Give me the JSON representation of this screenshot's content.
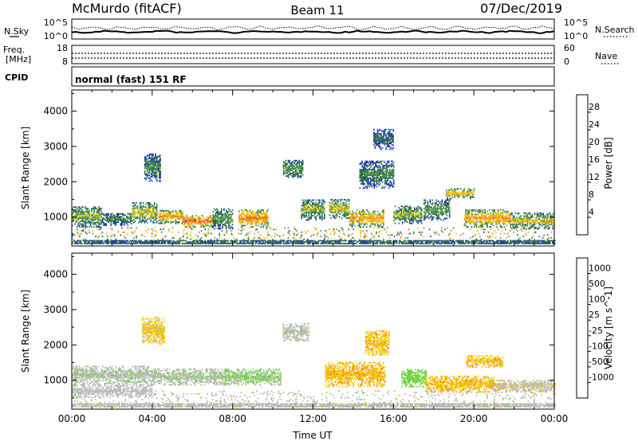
{
  "header": {
    "station": "McMurdo (fitACF)",
    "beam": "Beam 11",
    "date": "07/Dec/2019"
  },
  "panels": {
    "noise": {
      "left_label": "N.Sky",
      "right_label": "N.Search",
      "left_ticks": [
        "10^5",
        "10^0"
      ],
      "right_ticks": [
        "10^5",
        "10^0"
      ]
    },
    "freq": {
      "left_label_1": "Freq.",
      "left_label_2": "[MHz]",
      "right_label": "Nave",
      "left_ticks": [
        "18",
        "8"
      ],
      "right_ticks": [
        "60",
        "0"
      ]
    },
    "cpid": {
      "label": "CPID",
      "value": "normal (fast) 151 RF"
    }
  },
  "colors": {
    "power_scale": [
      "#0000ff",
      "#1a3fa0",
      "#2b6e3a",
      "#4f9a54",
      "#f5c400",
      "#f39a1a",
      "#f06a0c",
      "#e81818"
    ],
    "velocity_scale": [
      "#e81818",
      "#f06a0c",
      "#f08a1a",
      "#f5c400",
      "#b9b9b9",
      "#6fd23a",
      "#2e8a3a",
      "#2a4fa8",
      "#0000ff"
    ],
    "ground_scatter": "#b4b4b4"
  },
  "chart_data": [
    {
      "type": "heatmap",
      "name": "Power",
      "xlabel": "",
      "ylabel": "Slant Range [km]",
      "ylim": [
        180,
        4600
      ],
      "yticks": [
        "1000",
        "2000",
        "3000",
        "4000"
      ],
      "colorbar": {
        "label": "Power [dB]",
        "ticks": [
          "4",
          "8",
          "12",
          "16",
          "20",
          "24",
          "28"
        ],
        "range": [
          0,
          30
        ]
      },
      "bands": [
        {
          "t": [
            0.0,
            1.5
          ],
          "r": [
            700,
            1300
          ],
          "level": 14
        },
        {
          "t": [
            1.5,
            3.0
          ],
          "r": [
            750,
            1100
          ],
          "level": 10
        },
        {
          "t": [
            3.0,
            4.2
          ],
          "r": [
            820,
            1400
          ],
          "level": 16
        },
        {
          "t": [
            3.6,
            4.4
          ],
          "r": [
            2000,
            2800
          ],
          "level": 10
        },
        {
          "t": [
            4.3,
            5.5
          ],
          "r": [
            800,
            1200
          ],
          "level": 20
        },
        {
          "t": [
            5.5,
            7.0
          ],
          "r": [
            700,
            1050
          ],
          "level": 24
        },
        {
          "t": [
            7.0,
            8.0
          ],
          "r": [
            650,
            1250
          ],
          "level": 12
        },
        {
          "t": [
            8.3,
            9.8
          ],
          "r": [
            700,
            1200
          ],
          "level": 22
        },
        {
          "t": [
            10.5,
            11.5
          ],
          "r": [
            2100,
            2600
          ],
          "level": 12
        },
        {
          "t": [
            11.4,
            12.6
          ],
          "r": [
            900,
            1500
          ],
          "level": 14
        },
        {
          "t": [
            12.8,
            13.8
          ],
          "r": [
            950,
            1500
          ],
          "level": 16
        },
        {
          "t": [
            13.8,
            15.5
          ],
          "r": [
            700,
            1200
          ],
          "level": 20
        },
        {
          "t": [
            14.3,
            16.0
          ],
          "r": [
            1800,
            2600
          ],
          "level": 10
        },
        {
          "t": [
            15.0,
            16.0
          ],
          "r": [
            2900,
            3500
          ],
          "level": 8
        },
        {
          "t": [
            16.0,
            17.4
          ],
          "r": [
            800,
            1300
          ],
          "level": 14
        },
        {
          "t": [
            17.5,
            18.8
          ],
          "r": [
            900,
            1500
          ],
          "level": 12
        },
        {
          "t": [
            18.6,
            20.0
          ],
          "r": [
            1500,
            1800
          ],
          "level": 18
        },
        {
          "t": [
            19.5,
            21.8
          ],
          "r": [
            700,
            1200
          ],
          "level": 20
        },
        {
          "t": [
            21.8,
            24.0
          ],
          "r": [
            650,
            1100
          ],
          "level": 16
        }
      ]
    },
    {
      "type": "heatmap",
      "name": "Velocity",
      "xlabel": "Time UT",
      "ylabel": "Slant Range [km]",
      "ylim": [
        180,
        4600
      ],
      "xlim": [
        0,
        24
      ],
      "xticks": [
        "00:00",
        "04:00",
        "08:00",
        "12:00",
        "16:00",
        "20:00",
        "00:00"
      ],
      "yticks": [
        "1000",
        "2000",
        "3000",
        "4000"
      ],
      "colorbar": {
        "label": "Velocity [m s^-1]",
        "ticks": [
          "1000",
          "500",
          "100",
          "25",
          "-25",
          "-100",
          "-500",
          "-1000"
        ],
        "range": [
          -1000,
          1000
        ]
      },
      "bands": [
        {
          "t": [
            0.0,
            4.0
          ],
          "r": [
            850,
            1400
          ],
          "level": 80
        },
        {
          "t": [
            0.0,
            4.0
          ],
          "r": [
            500,
            850
          ],
          "level": 0
        },
        {
          "t": [
            3.5,
            4.6
          ],
          "r": [
            2000,
            2800
          ],
          "level": -150
        },
        {
          "t": [
            4.0,
            7.6
          ],
          "r": [
            850,
            1300
          ],
          "level": 80
        },
        {
          "t": [
            7.6,
            10.4
          ],
          "r": [
            850,
            1300
          ],
          "level": 120
        },
        {
          "t": [
            10.5,
            11.8
          ],
          "r": [
            2100,
            2600
          ],
          "level": 60
        },
        {
          "t": [
            12.6,
            15.6
          ],
          "r": [
            800,
            1500
          ],
          "level": -300
        },
        {
          "t": [
            14.6,
            15.8
          ],
          "r": [
            1700,
            2400
          ],
          "level": -300
        },
        {
          "t": [
            16.4,
            17.6
          ],
          "r": [
            800,
            1300
          ],
          "level": 200
        },
        {
          "t": [
            17.6,
            21.0
          ],
          "r": [
            650,
            1100
          ],
          "level": -300
        },
        {
          "t": [
            19.6,
            21.4
          ],
          "r": [
            1350,
            1700
          ],
          "level": -300
        },
        {
          "t": [
            21.0,
            24.0
          ],
          "r": [
            650,
            1000
          ],
          "level": -80
        }
      ]
    }
  ]
}
